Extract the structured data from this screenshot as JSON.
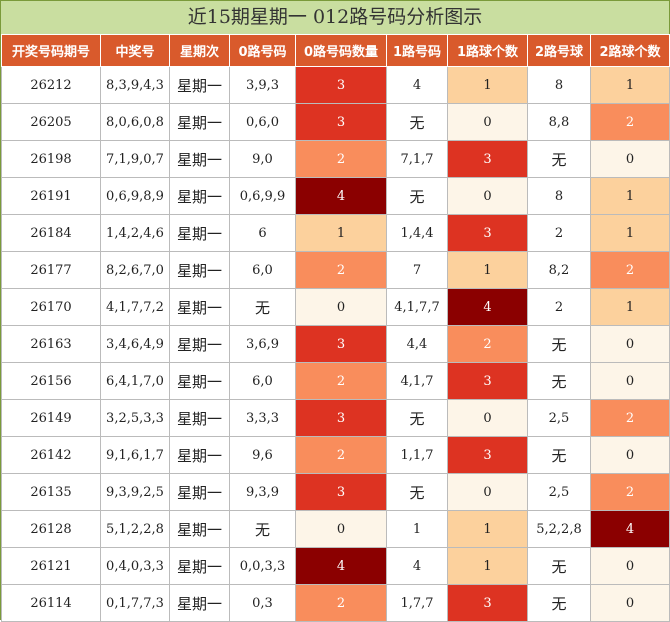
{
  "title": "近15期星期一 012路号码分析图示",
  "chart_data": {
    "type": "table",
    "columns": [
      "开奖号码期号",
      "中奖号",
      "星期次",
      "0路号码",
      "0路号码数量",
      "1路号码",
      "1路球个数",
      "2路号球",
      "2路球个数"
    ],
    "rows": [
      [
        "26212",
        "8,3,9,4,3",
        "星期一",
        "3,9,3",
        "3",
        "4",
        "1",
        "8",
        "1"
      ],
      [
        "26205",
        "8,0,6,0,8",
        "星期一",
        "0,6,0",
        "3",
        "无",
        "0",
        "8,8",
        "2"
      ],
      [
        "26198",
        "7,1,9,0,7",
        "星期一",
        "9,0",
        "2",
        "7,1,7",
        "3",
        "无",
        "0"
      ],
      [
        "26191",
        "0,6,9,8,9",
        "星期一",
        "0,6,9,9",
        "4",
        "无",
        "0",
        "8",
        "1"
      ],
      [
        "26184",
        "1,4,2,4,6",
        "星期一",
        "6",
        "1",
        "1,4,4",
        "3",
        "2",
        "1"
      ],
      [
        "26177",
        "8,2,6,7,0",
        "星期一",
        "6,0",
        "2",
        "7",
        "1",
        "8,2",
        "2"
      ],
      [
        "26170",
        "4,1,7,7,2",
        "星期一",
        "无",
        "0",
        "4,1,7,7",
        "4",
        "2",
        "1"
      ],
      [
        "26163",
        "3,4,6,4,9",
        "星期一",
        "3,6,9",
        "3",
        "4,4",
        "2",
        "无",
        "0"
      ],
      [
        "26156",
        "6,4,1,7,0",
        "星期一",
        "6,0",
        "2",
        "4,1,7",
        "3",
        "无",
        "0"
      ],
      [
        "26149",
        "3,2,5,3,3",
        "星期一",
        "3,3,3",
        "3",
        "无",
        "0",
        "2,5",
        "2"
      ],
      [
        "26142",
        "9,1,6,1,7",
        "星期一",
        "9,6",
        "2",
        "1,1,7",
        "3",
        "无",
        "0"
      ],
      [
        "26135",
        "9,3,9,2,5",
        "星期一",
        "9,3,9",
        "3",
        "无",
        "0",
        "2,5",
        "2"
      ],
      [
        "26128",
        "5,1,2,2,8",
        "星期一",
        "无",
        "0",
        "1",
        "1",
        "5,2,2,8",
        "4"
      ],
      [
        "26121",
        "0,4,0,3,3",
        "星期一",
        "0,0,3,3",
        "4",
        "4",
        "1",
        "无",
        "0"
      ],
      [
        "26114",
        "0,1,7,7,3",
        "星期一",
        "0,3",
        "2",
        "1,7,7",
        "3",
        "无",
        "0"
      ]
    ],
    "count_columns": [
      4,
      6,
      8
    ],
    "count_colors": {
      "0": "#fdf5e8",
      "1": "#fcd19d",
      "2": "#f98d5c",
      "3": "#dd3322",
      "4": "#8b0000"
    },
    "header_color": "#d95a2c",
    "title_color": "#c9dea0"
  }
}
